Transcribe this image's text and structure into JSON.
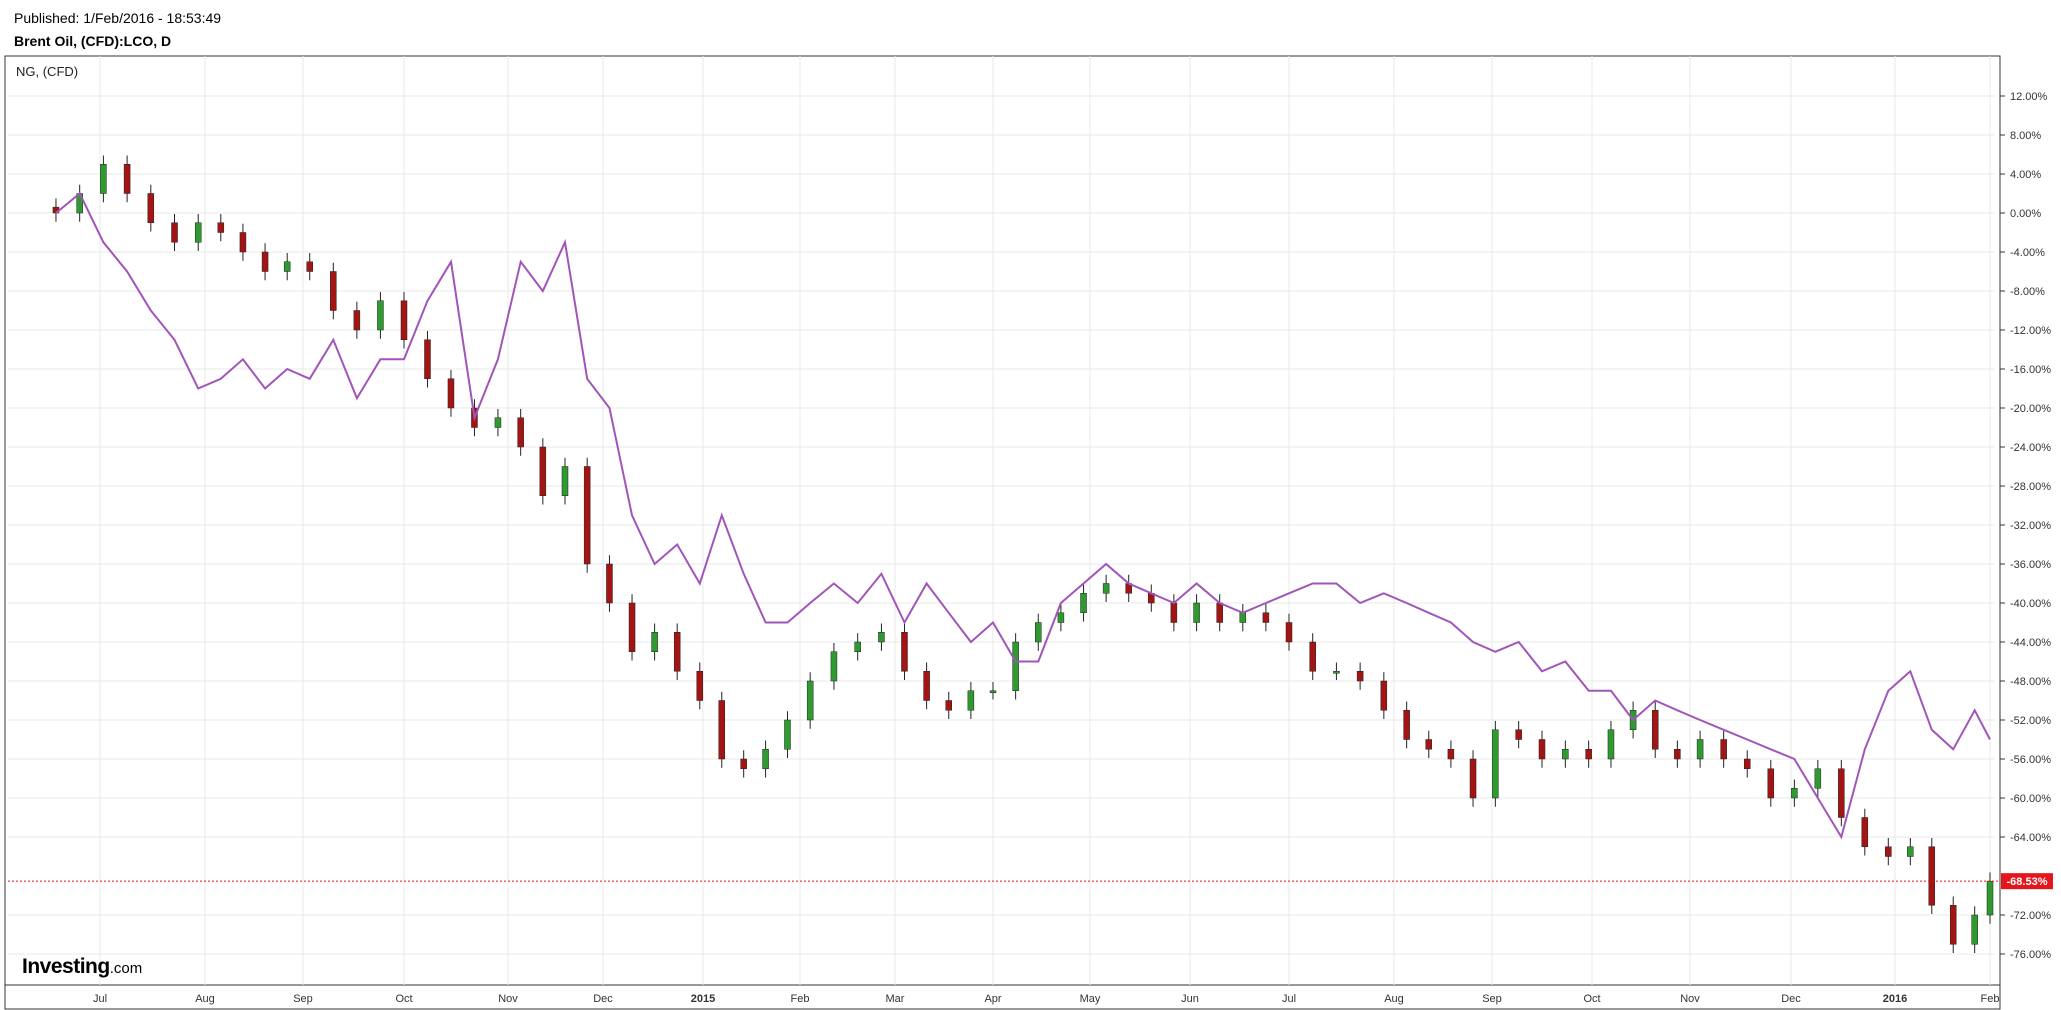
{
  "header": {
    "published": "Published: 1/Feb/2016 - 18:53:49",
    "symbol": "Brent Oil, (CFD):LCO, D"
  },
  "series_label": "NG,  (CFD)",
  "logo": {
    "brand": "Investing",
    "tld": ".com"
  },
  "colors": {
    "up": "#2f9a2f",
    "down": "#a31414",
    "ng_line": "#a155b9",
    "current_marker": "#e3161b",
    "grid": "#e8e8e8",
    "frame": "#333333"
  },
  "chart_data": {
    "type": "line",
    "title": "Brent Oil, (CFD):LCO, D",
    "xlabel": "",
    "ylabel": "",
    "x_tick_labels": [
      "Jul",
      "Aug",
      "Sep",
      "Oct",
      "Nov",
      "Dec",
      "2015",
      "Feb",
      "Mar",
      "Apr",
      "May",
      "Jun",
      "Jul",
      "Aug",
      "Sep",
      "Oct",
      "Nov",
      "Dec",
      "2016",
      "Feb"
    ],
    "y_tick_labels": [
      "12.00%",
      "8.00%",
      "4.00%",
      "0.00%",
      "-4.00%",
      "-8.00%",
      "-12.00%",
      "-16.00%",
      "-20.00%",
      "-24.00%",
      "-28.00%",
      "-32.00%",
      "-36.00%",
      "-40.00%",
      "-44.00%",
      "-48.00%",
      "-52.00%",
      "-56.00%",
      "-60.00%",
      "-64.00%",
      "-72.00%",
      "-76.00%"
    ],
    "ylim": [
      -80,
      13
    ],
    "current_value": -68.53,
    "current_label": "-68.53%",
    "grid": true,
    "series": [
      {
        "name": "Brent Oil, (CFD):LCO",
        "style": "candlestick",
        "x": [
          "2014-06-18",
          "2014-06-25",
          "2014-07-02",
          "2014-07-09",
          "2014-07-16",
          "2014-07-23",
          "2014-07-30",
          "2014-08-06",
          "2014-08-13",
          "2014-08-20",
          "2014-08-27",
          "2014-09-03",
          "2014-09-10",
          "2014-09-17",
          "2014-09-24",
          "2014-10-01",
          "2014-10-08",
          "2014-10-15",
          "2014-10-22",
          "2014-10-29",
          "2014-11-05",
          "2014-11-12",
          "2014-11-19",
          "2014-11-26",
          "2014-12-03",
          "2014-12-10",
          "2014-12-17",
          "2014-12-24",
          "2014-12-31",
          "2015-01-07",
          "2015-01-14",
          "2015-01-21",
          "2015-01-28",
          "2015-02-04",
          "2015-02-11",
          "2015-02-18",
          "2015-02-25",
          "2015-03-04",
          "2015-03-11",
          "2015-03-18",
          "2015-03-25",
          "2015-04-01",
          "2015-04-08",
          "2015-04-15",
          "2015-04-22",
          "2015-04-29",
          "2015-05-06",
          "2015-05-13",
          "2015-05-20",
          "2015-05-27",
          "2015-06-03",
          "2015-06-10",
          "2015-06-17",
          "2015-06-24",
          "2015-07-01",
          "2015-07-08",
          "2015-07-15",
          "2015-07-22",
          "2015-07-29",
          "2015-08-05",
          "2015-08-12",
          "2015-08-19",
          "2015-08-26",
          "2015-09-02",
          "2015-09-09",
          "2015-09-16",
          "2015-09-23",
          "2015-09-30",
          "2015-10-07",
          "2015-10-14",
          "2015-10-21",
          "2015-10-28",
          "2015-11-04",
          "2015-11-11",
          "2015-11-18",
          "2015-11-25",
          "2015-12-02",
          "2015-12-09",
          "2015-12-16",
          "2015-12-23",
          "2015-12-30",
          "2016-01-06",
          "2016-01-13",
          "2016-01-20",
          "2016-01-27",
          "2016-02-01"
        ],
        "y": [
          0,
          2,
          5,
          2,
          -1,
          -3,
          -1,
          -2,
          -4,
          -6,
          -5,
          -6,
          -10,
          -12,
          -9,
          -13,
          -17,
          -20,
          -22,
          -21,
          -24,
          -29,
          -26,
          -36,
          -40,
          -45,
          -43,
          -47,
          -50,
          -56,
          -57,
          -55,
          -52,
          -48,
          -45,
          -44,
          -43,
          -47,
          -50,
          -51,
          -49,
          -49,
          -44,
          -42,
          -41,
          -39,
          -38,
          -39,
          -40,
          -42,
          -40,
          -42,
          -41,
          -42,
          -44,
          -47,
          -47,
          -48,
          -51,
          -54,
          -55,
          -56,
          -60,
          -53,
          -54,
          -56,
          -55,
          -56,
          -53,
          -51,
          -55,
          -56,
          -54,
          -56,
          -57,
          -60,
          -59,
          -57,
          -62,
          -65,
          -66,
          -65,
          -71,
          -75,
          -72,
          -68.53
        ]
      },
      {
        "name": "NG,  (CFD)",
        "style": "line",
        "x": [
          "2014-06-18",
          "2014-06-25",
          "2014-07-02",
          "2014-07-09",
          "2014-07-16",
          "2014-07-23",
          "2014-07-30",
          "2014-08-06",
          "2014-08-13",
          "2014-08-20",
          "2014-08-27",
          "2014-09-03",
          "2014-09-10",
          "2014-09-17",
          "2014-09-24",
          "2014-10-01",
          "2014-10-08",
          "2014-10-15",
          "2014-10-22",
          "2014-10-29",
          "2014-11-05",
          "2014-11-12",
          "2014-11-19",
          "2014-11-26",
          "2014-12-03",
          "2014-12-10",
          "2014-12-17",
          "2014-12-24",
          "2014-12-31",
          "2015-01-07",
          "2015-01-14",
          "2015-01-21",
          "2015-01-28",
          "2015-02-04",
          "2015-02-11",
          "2015-02-18",
          "2015-02-25",
          "2015-03-04",
          "2015-03-11",
          "2015-03-18",
          "2015-03-25",
          "2015-04-01",
          "2015-04-08",
          "2015-04-15",
          "2015-04-22",
          "2015-04-29",
          "2015-05-06",
          "2015-05-13",
          "2015-05-20",
          "2015-05-27",
          "2015-06-03",
          "2015-06-10",
          "2015-06-17",
          "2015-06-24",
          "2015-07-01",
          "2015-07-08",
          "2015-07-15",
          "2015-07-22",
          "2015-07-29",
          "2015-08-05",
          "2015-08-12",
          "2015-08-19",
          "2015-08-26",
          "2015-09-02",
          "2015-09-09",
          "2015-09-16",
          "2015-09-23",
          "2015-09-30",
          "2015-10-07",
          "2015-10-14",
          "2015-10-21",
          "2015-10-28",
          "2015-11-04",
          "2015-11-11",
          "2015-11-18",
          "2015-11-25",
          "2015-12-02",
          "2015-12-09",
          "2015-12-16",
          "2015-12-23",
          "2015-12-30",
          "2016-01-06",
          "2016-01-13",
          "2016-01-20",
          "2016-01-27",
          "2016-02-01"
        ],
        "y": [
          0,
          2,
          -3,
          -6,
          -10,
          -13,
          -18,
          -17,
          -15,
          -18,
          -16,
          -17,
          -13,
          -19,
          -15,
          -15,
          -9,
          -5,
          -21,
          -15,
          -5,
          -8,
          -3,
          -17,
          -20,
          -31,
          -36,
          -34,
          -38,
          -31,
          -37,
          -42,
          -42,
          -40,
          -38,
          -40,
          -37,
          -42,
          -38,
          -41,
          -44,
          -42,
          -46,
          -46,
          -40,
          -38,
          -36,
          -38,
          -39,
          -40,
          -38,
          -40,
          -41,
          -40,
          -39,
          -38,
          -38,
          -40,
          -39,
          -40,
          -41,
          -42,
          -44,
          -45,
          -44,
          -47,
          -46,
          -49,
          -49,
          -52,
          -50,
          -51,
          -52,
          -53,
          -54,
          -55,
          -56,
          -60,
          -64,
          -55,
          -49,
          -47,
          -53,
          -55,
          -51,
          -54
        ]
      }
    ]
  }
}
